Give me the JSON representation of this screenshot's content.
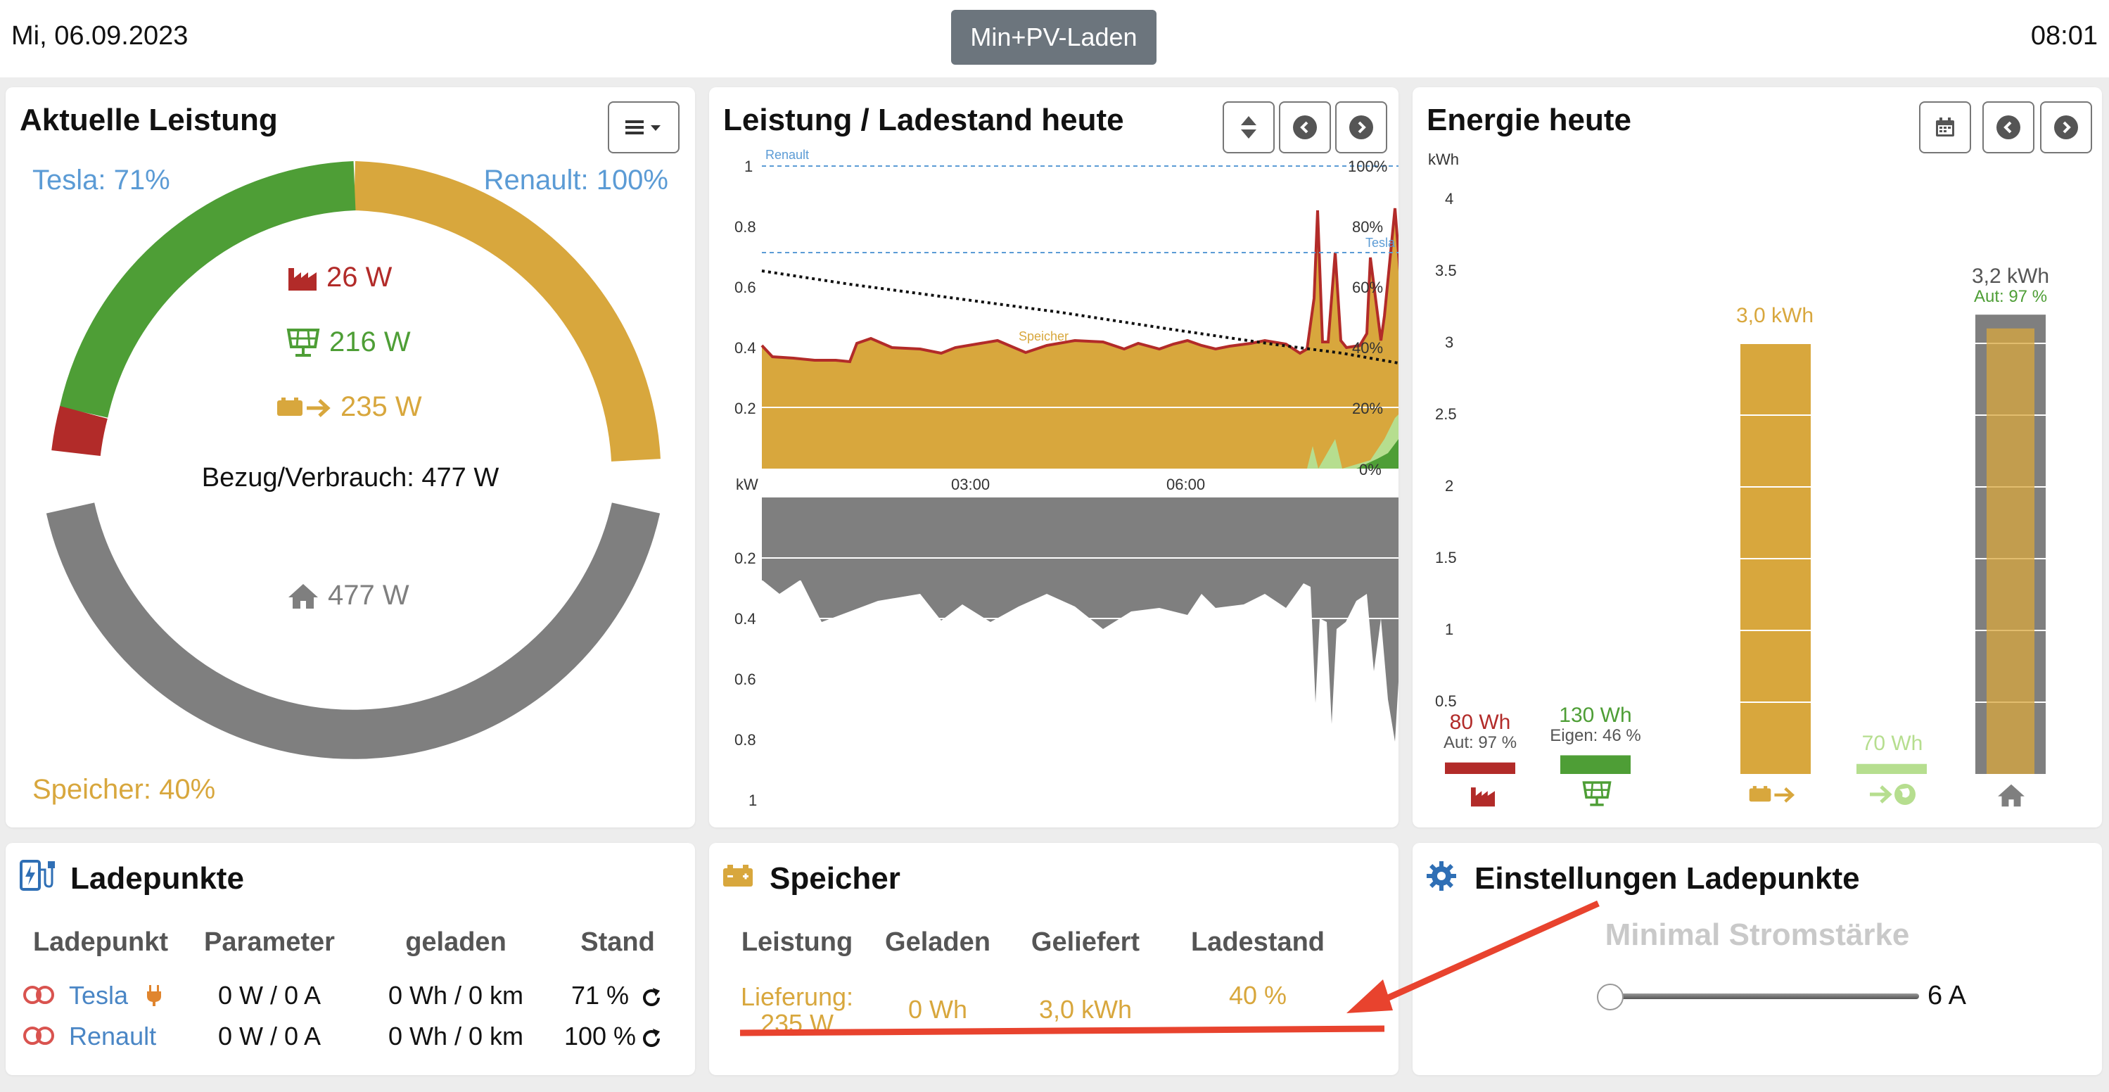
{
  "header": {
    "date": "Mi, 06.09.2023",
    "mode": "Min+PV-Laden",
    "time": "08:01"
  },
  "colors": {
    "evu": "#b22b29",
    "pv": "#4e9e36",
    "battery": "#d8a73d",
    "house": "#7f7f7f",
    "vehicle": "#5b9bd5",
    "grid_export": "#b6de8f"
  },
  "power_card": {
    "title": "Aktuelle Leistung",
    "tesla_soc": "Tesla: 71%",
    "renault_soc": "Renault: 100%",
    "battery_soc": "Speicher: 40%",
    "evu_power": "26 W",
    "pv_power": "216 W",
    "battery_power": "235 W",
    "summary": "Bezug/Verbrauch: 477 W",
    "house_power": "477 W",
    "menu_icon": "list-icon"
  },
  "history_card": {
    "title": "Leistung / Ladestand heute",
    "yaxis_left_top": [
      "1",
      "0.8",
      "0.6",
      "0.4",
      "0.2"
    ],
    "yaxis_right": [
      "100%",
      "80%",
      "60%",
      "40%",
      "20%",
      "0%"
    ],
    "unit": "kW",
    "xaxis": [
      "03:00",
      "06:00"
    ],
    "yaxis_left_bottom": [
      "0.2",
      "0.4",
      "0.6",
      "0.8",
      "1"
    ],
    "series_labels": {
      "renault": "Renault",
      "tesla": "Tesla",
      "battery": "Speicher"
    }
  },
  "energy_card": {
    "title": "Energie heute",
    "unit": "kWh",
    "yaxis": [
      "4",
      "3.5",
      "3",
      "2.5",
      "2",
      "1.5",
      "1",
      "0.5"
    ]
  },
  "chart_data": {
    "type": "bar",
    "categories": [
      "Netzbezug",
      "PV",
      "Speicher",
      "Einspeisung",
      "Hausverbrauch"
    ],
    "values": [
      0.08,
      0.13,
      3.0,
      0.07,
      3.2
    ],
    "labels": [
      "80 Wh",
      "130 Wh",
      "3,0 kWh",
      "70 Wh",
      "3,2 kWh"
    ],
    "sublabels": [
      "Aut: 97 %",
      "Eigen: 46 %",
      "",
      "",
      "Aut: 97 %"
    ],
    "ylabel": "kWh",
    "ylim": [
      0,
      4.2
    ]
  },
  "chargepoints_card": {
    "title": "Ladepunkte",
    "headers": [
      "Ladepunkt",
      "Parameter",
      "geladen",
      "Stand"
    ],
    "rows": [
      {
        "name": "Tesla",
        "param": "0 W / 0 A",
        "charged": "0 Wh / 0 km",
        "soc": "71 %"
      },
      {
        "name": "Renault",
        "param": "0 W / 0 A",
        "charged": "0 Wh / 0 km",
        "soc": "100 %"
      }
    ]
  },
  "battery_card": {
    "title": "Speicher",
    "headers": [
      "Leistung",
      "Geladen",
      "Geliefert",
      "Ladestand"
    ],
    "power_label": "Lieferung:",
    "power_value": "235 W",
    "charged": "0 Wh",
    "delivered": "3,0 kWh",
    "soc": "40 %"
  },
  "settings_card": {
    "title": "Einstellungen Ladepunkte",
    "slider_label": "Minimal Stromstärke",
    "slider_value": "6 A"
  }
}
